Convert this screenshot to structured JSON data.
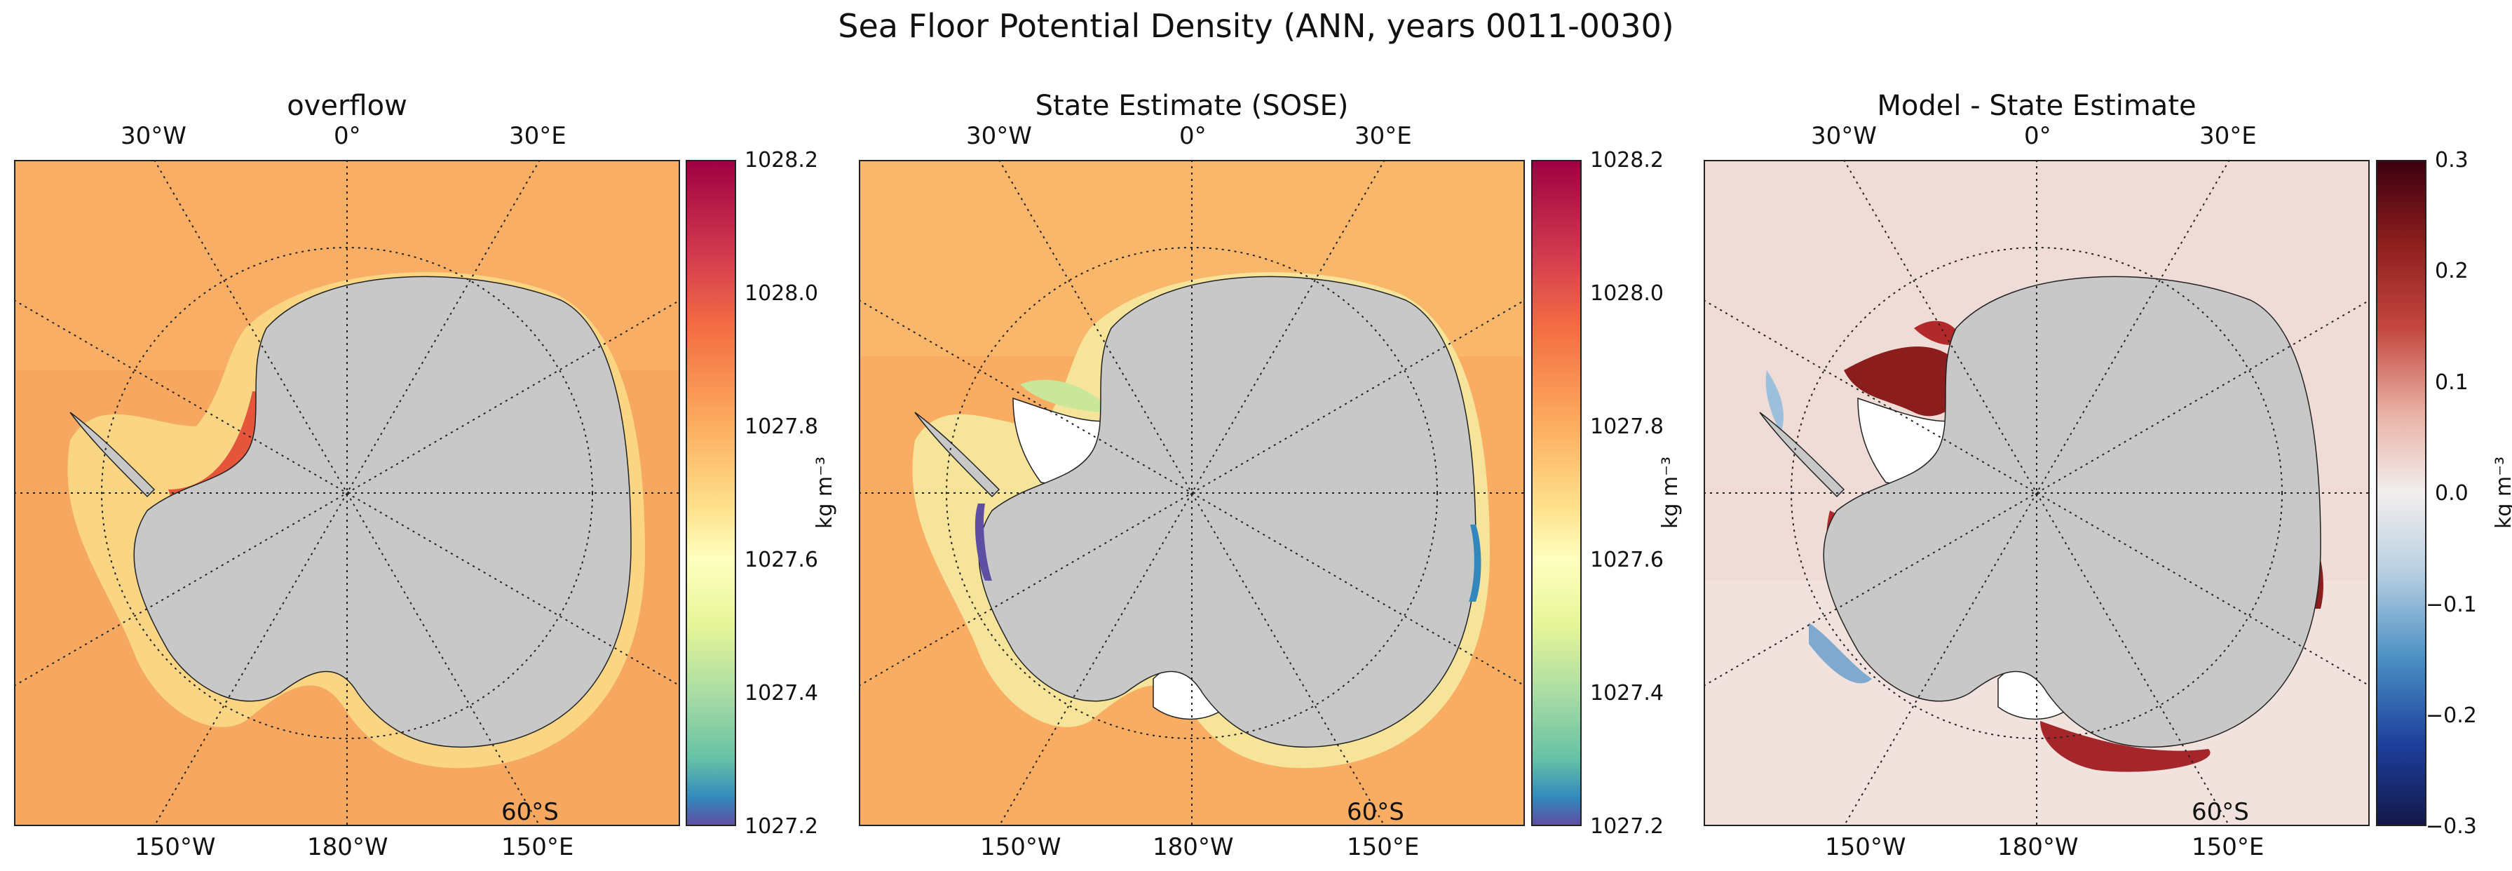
{
  "title": "Sea Floor Potential Density (ANN, years 0011-0030)",
  "panels": [
    {
      "title": "overflow",
      "colormap": "Spectral_r",
      "cbar_ticks": [
        "1028.2",
        "1028.0",
        "1027.8",
        "1027.6",
        "1027.4",
        "1027.2"
      ],
      "cbar_range": [
        1027.2,
        1028.2
      ],
      "unit": "kg m⁻³"
    },
    {
      "title": "State Estimate (SOSE)",
      "colormap": "Spectral_r",
      "cbar_ticks": [
        "1028.2",
        "1028.0",
        "1027.8",
        "1027.6",
        "1027.4",
        "1027.2"
      ],
      "cbar_range": [
        1027.2,
        1028.2
      ],
      "unit": "kg m⁻³"
    },
    {
      "title": "Model - State Estimate",
      "colormap": "RdBu_r",
      "cbar_ticks": [
        "0.3",
        "0.2",
        "0.1",
        "0.0",
        "−0.1",
        "−0.2",
        "−0.3"
      ],
      "cbar_range": [
        -0.3,
        0.3
      ],
      "unit": "kg m⁻³"
    }
  ],
  "lon_labels_top": [
    "30°W",
    "0°",
    "30°E"
  ],
  "lon_labels_bottom": [
    "150°W",
    "180°W",
    "150°E"
  ],
  "lat_label": "60°S",
  "colors": {
    "land": "#c8c8c8",
    "ocean_density": "#f7a860",
    "ocean_diff": "#eedcd8"
  }
}
